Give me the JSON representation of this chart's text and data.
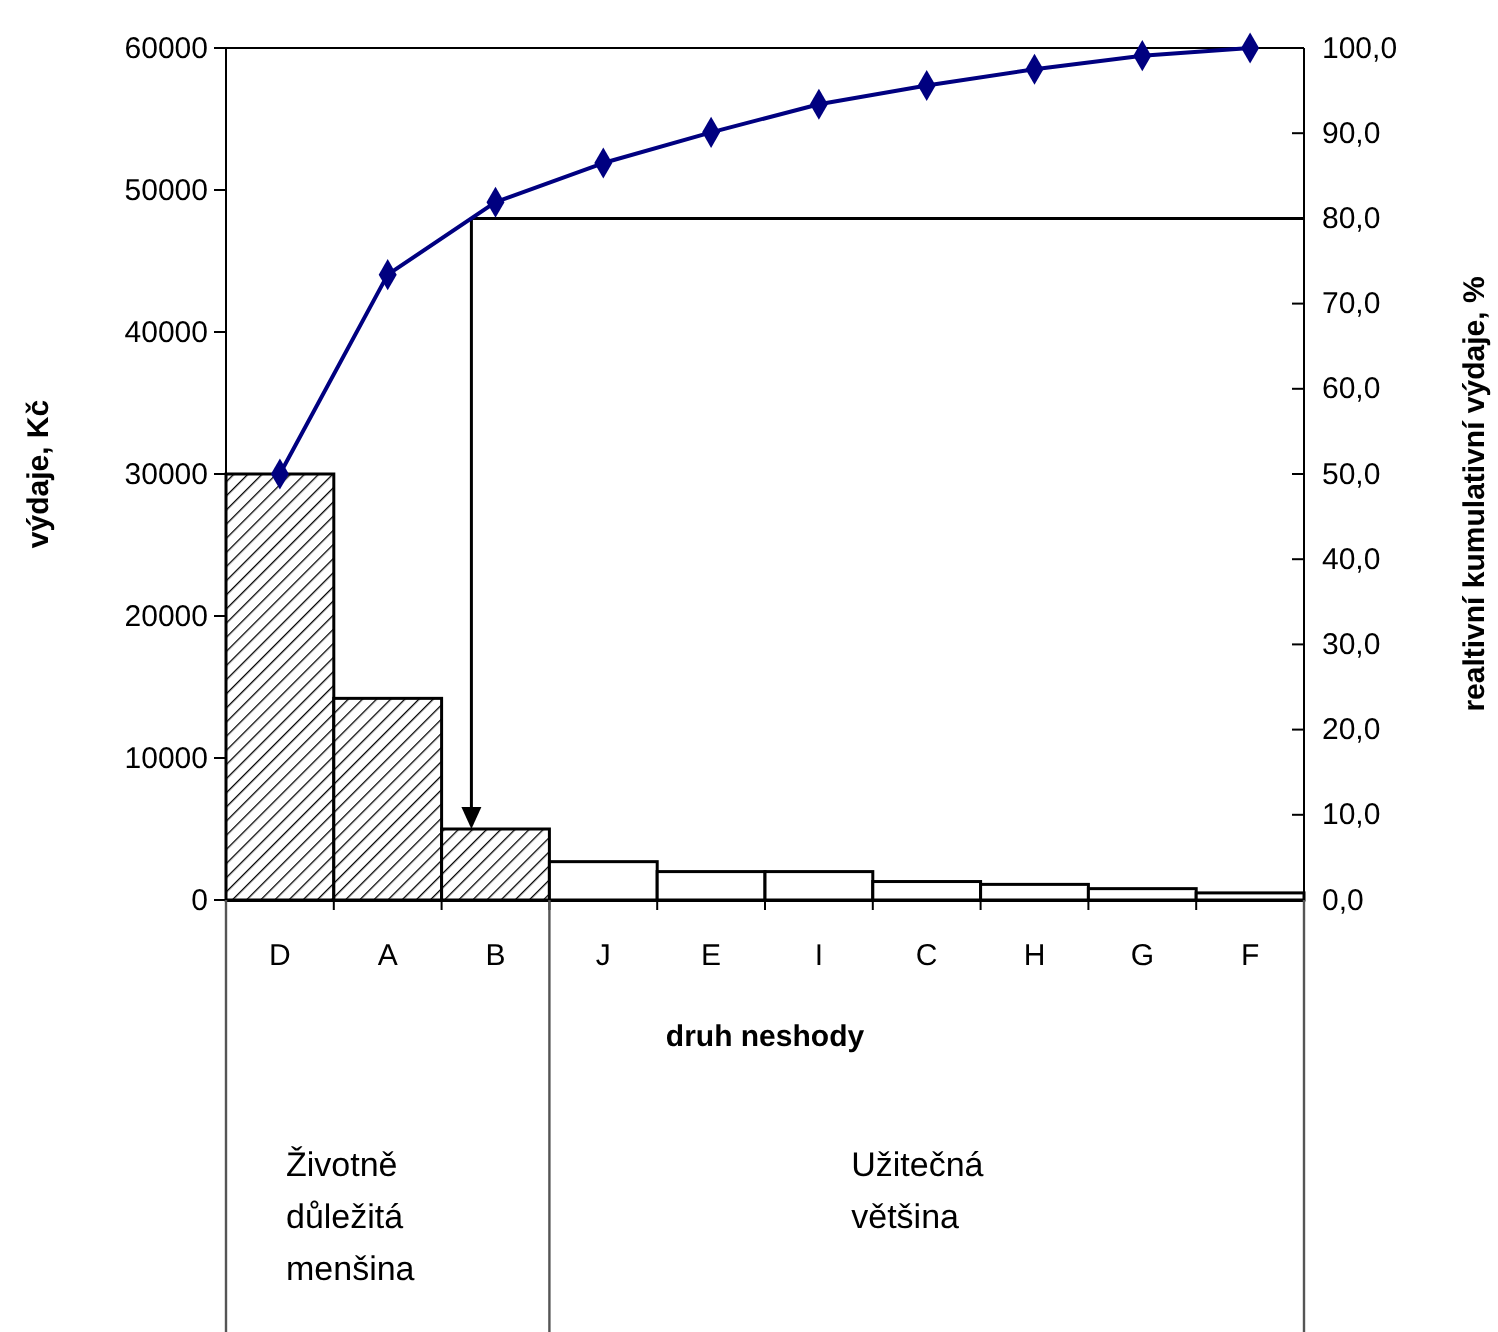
{
  "chart_data": {
    "type": "bar",
    "xlabel": "druh neshody",
    "ylabel": "výdaje, Kč",
    "y2label": "realtivní kumulativní výdaje, %",
    "categories": [
      "D",
      "A",
      "B",
      "J",
      "E",
      "I",
      "C",
      "H",
      "G",
      "F"
    ],
    "series": [
      {
        "colors": [
          "#000000",
          "#000000",
          "#000000",
          "#ffffff",
          "#ffffff",
          "#ffffff",
          "#ffffff",
          "#ffffff",
          "#ffffff",
          "#ffffff"
        ],
        "values": [
          30000,
          14200,
          5000,
          2700,
          2000,
          2000,
          1300,
          1100,
          800,
          500
        ]
      },
      {
        "type": "line",
        "axis": "y2",
        "color": "#000080",
        "values": [
          50,
          73.4,
          81.9,
          86.5,
          90.1,
          93.4,
          95.6,
          97.5,
          99.1,
          100
        ]
      }
    ],
    "marker": "diamond",
    "line_style": "solid",
    "ylim": [
      0,
      60000
    ],
    "yticks": [
      0,
      10000,
      20000,
      30000,
      40000,
      50000,
      60000
    ],
    "y2lim": [
      0,
      100
    ],
    "y2ticks": [
      {
        "value": 0,
        "label": "0,0"
      },
      {
        "value": 10,
        "label": "10,0"
      },
      {
        "value": 20,
        "label": "20,0"
      },
      {
        "value": 30,
        "label": "30,0"
      },
      {
        "value": 40,
        "label": "40,0"
      },
      {
        "value": 50,
        "label": "50,0"
      },
      {
        "value": 60,
        "label": "60,0"
      },
      {
        "value": 70,
        "label": "70,0"
      },
      {
        "value": 80,
        "label": "80,0"
      },
      {
        "value": 90,
        "label": "90,0"
      },
      {
        "value": 100,
        "label": "100,0"
      }
    ],
    "ref_lines": [
      {
        "axis": "y2",
        "value": 80,
        "color": "#000000"
      }
    ],
    "annotations": [
      "Životně\ndůležitá\nmenšina",
      "Užitečná\nvětšina"
    ]
  }
}
